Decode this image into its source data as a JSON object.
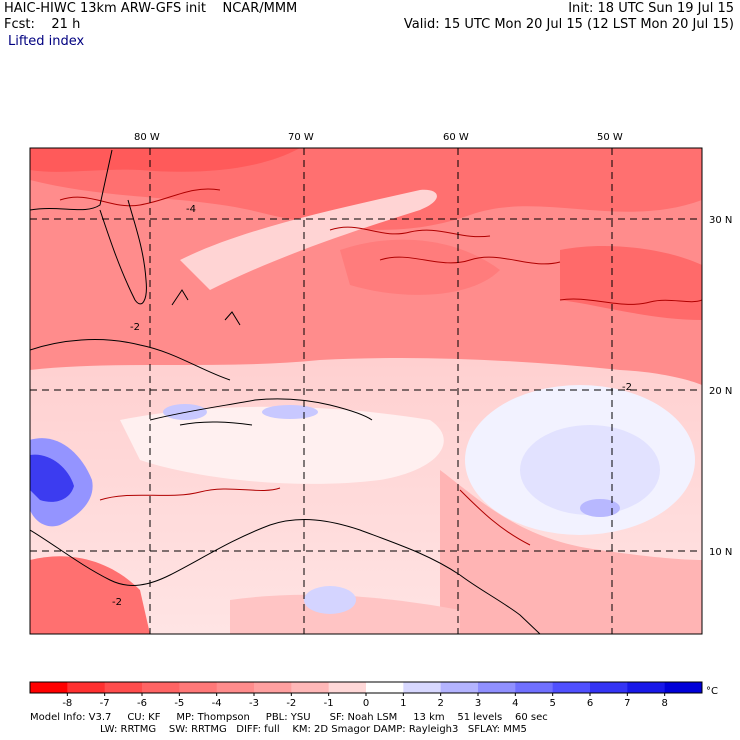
{
  "header": {
    "model_title": "HAIC-HIWC 13km ARW-GFS init    NCAR/MMM",
    "init_label": "Init: 18 UTC Sun 19 Jul 15",
    "fcst_label": "Fcst:    21 h",
    "valid_label": "Valid: 15 UTC Mon 20 Jul 15 (12 LST Mon 20 Jul 15)",
    "field_name": "Lifted index"
  },
  "axes": {
    "lon_labels": [
      "80 W",
      "70 W",
      "60 W",
      "50 W"
    ],
    "lat_labels": [
      "30 N",
      "20 N",
      "10 N"
    ]
  },
  "colorbar": {
    "ticks": [
      "-8",
      "-7",
      "-6",
      "-5",
      "-4",
      "-3",
      "-2",
      "-1",
      "0",
      "1",
      "2",
      "3",
      "4",
      "5",
      "6",
      "7",
      "8"
    ],
    "unit": "°C",
    "colors": [
      "#ff0000",
      "#ff3030",
      "#ff4d4d",
      "#ff6464",
      "#ff7878",
      "#ff8c8c",
      "#ffa0a0",
      "#ffb8b8",
      "#ffd8d8",
      "#ffffff",
      "#d8d8ff",
      "#b4b4ff",
      "#9090ff",
      "#7070ff",
      "#5050ff",
      "#3434f4",
      "#1818e8",
      "#0000d8"
    ]
  },
  "map_labels": [
    "-4",
    "-2",
    "-2",
    "-2"
  ],
  "footer": {
    "line1": "Model Info: V3.7     CU: KF     MP: Thompson     PBL: YSU      SF: Noah LSM     13 km    51 levels    60 sec",
    "line2": "LW: RRTMG    SW: RRTMG   DIFF: full    KM: 2D Smagor DAMP: Rayleigh3   SFLAY: MM5"
  }
}
